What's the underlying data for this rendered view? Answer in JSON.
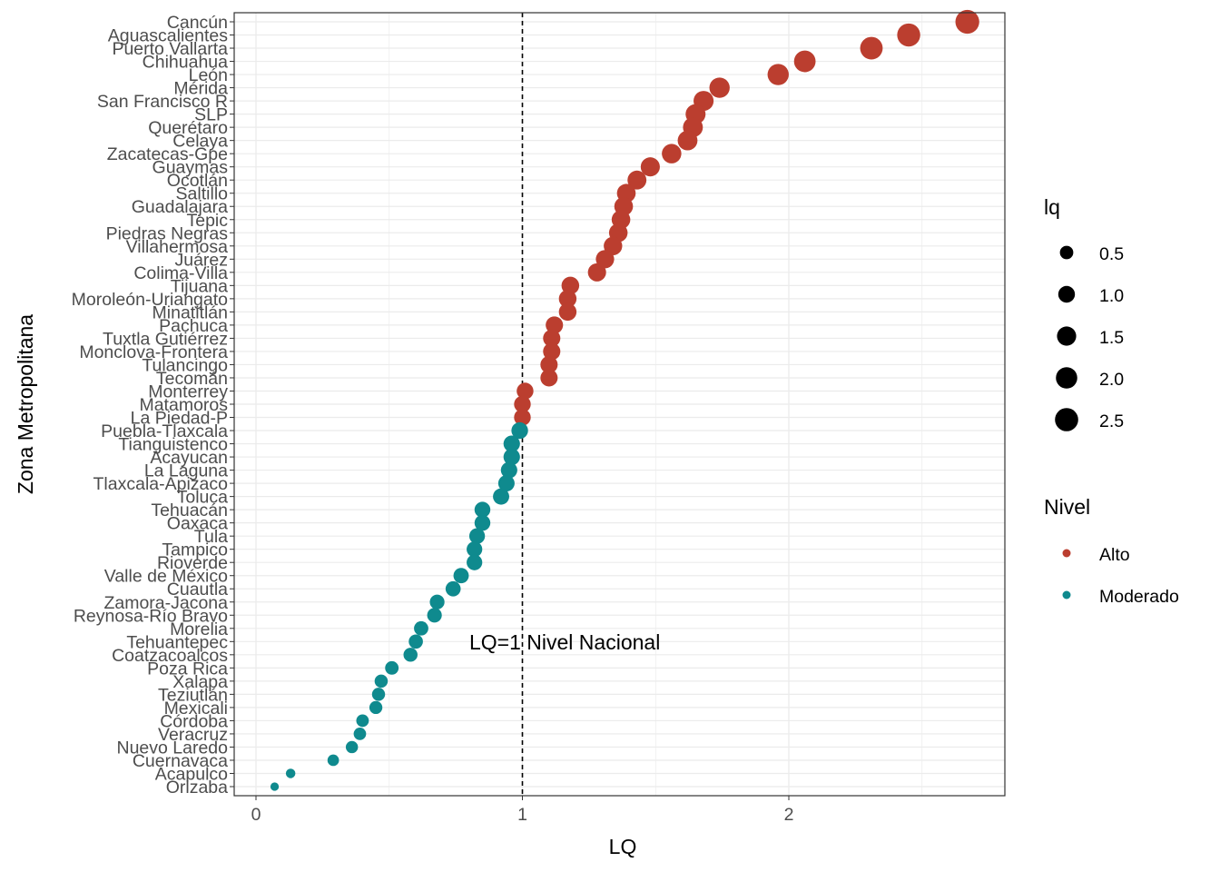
{
  "chart_data": {
    "type": "scatter",
    "xlabel": "LQ",
    "ylabel": "Zona Metropolitana",
    "xlim": [
      -0.04,
      2.8
    ],
    "x_ticks": [
      0,
      1,
      2
    ],
    "grid": true,
    "reference_line": {
      "x": 1,
      "style": "dashed",
      "label": "LQ=1 Nivel Nacional"
    },
    "size_legend": {
      "title": "lq",
      "values": [
        0.5,
        1.0,
        1.5,
        2.0,
        2.5
      ],
      "labels": [
        "0.5",
        "1.0",
        "1.5",
        "2.0",
        "2.5"
      ]
    },
    "color_legend": {
      "title": "Nivel",
      "entries": [
        {
          "label": "Alto",
          "color": "#BB3E2F"
        },
        {
          "label": "Moderado",
          "color": "#0F8A8E"
        }
      ]
    },
    "points": [
      {
        "zona": "Cancún",
        "lq": 2.67,
        "nivel": "Alto"
      },
      {
        "zona": "Aguascalientes",
        "lq": 2.45,
        "nivel": "Alto"
      },
      {
        "zona": "Puerto Vallarta",
        "lq": 2.31,
        "nivel": "Alto"
      },
      {
        "zona": "Chihuahua",
        "lq": 2.06,
        "nivel": "Alto"
      },
      {
        "zona": "León",
        "lq": 1.96,
        "nivel": "Alto"
      },
      {
        "zona": "Mérida",
        "lq": 1.74,
        "nivel": "Alto"
      },
      {
        "zona": "San Francisco R",
        "lq": 1.68,
        "nivel": "Alto"
      },
      {
        "zona": "SLP",
        "lq": 1.65,
        "nivel": "Alto"
      },
      {
        "zona": "Querétaro",
        "lq": 1.64,
        "nivel": "Alto"
      },
      {
        "zona": "Celaya",
        "lq": 1.62,
        "nivel": "Alto"
      },
      {
        "zona": "Zacatecas-Gpe",
        "lq": 1.56,
        "nivel": "Alto"
      },
      {
        "zona": "Guaymas",
        "lq": 1.48,
        "nivel": "Alto"
      },
      {
        "zona": "Ocotlán",
        "lq": 1.43,
        "nivel": "Alto"
      },
      {
        "zona": "Saltillo",
        "lq": 1.39,
        "nivel": "Alto"
      },
      {
        "zona": "Guadalajara",
        "lq": 1.38,
        "nivel": "Alto"
      },
      {
        "zona": "Tepic",
        "lq": 1.37,
        "nivel": "Alto"
      },
      {
        "zona": "Piedras Negras",
        "lq": 1.36,
        "nivel": "Alto"
      },
      {
        "zona": "Villahermosa",
        "lq": 1.34,
        "nivel": "Alto"
      },
      {
        "zona": "Juárez",
        "lq": 1.31,
        "nivel": "Alto"
      },
      {
        "zona": "Colima-Villa",
        "lq": 1.28,
        "nivel": "Alto"
      },
      {
        "zona": "Tijuana",
        "lq": 1.18,
        "nivel": "Alto"
      },
      {
        "zona": "Moroleón-Uriangato",
        "lq": 1.17,
        "nivel": "Alto"
      },
      {
        "zona": "Minatitlán",
        "lq": 1.17,
        "nivel": "Alto"
      },
      {
        "zona": "Pachuca",
        "lq": 1.12,
        "nivel": "Alto"
      },
      {
        "zona": "Tuxtla Gutiérrez",
        "lq": 1.11,
        "nivel": "Alto"
      },
      {
        "zona": "Monclova-Frontera",
        "lq": 1.11,
        "nivel": "Alto"
      },
      {
        "zona": "Tulancingo",
        "lq": 1.1,
        "nivel": "Alto"
      },
      {
        "zona": "Tecomán",
        "lq": 1.1,
        "nivel": "Alto"
      },
      {
        "zona": "Monterrey",
        "lq": 1.01,
        "nivel": "Alto"
      },
      {
        "zona": "Matamoros",
        "lq": 1.0,
        "nivel": "Alto"
      },
      {
        "zona": "La Piedad-P",
        "lq": 1.0,
        "nivel": "Alto"
      },
      {
        "zona": "Puebla-Tlaxcala",
        "lq": 0.99,
        "nivel": "Moderado"
      },
      {
        "zona": "Tianguistenco",
        "lq": 0.96,
        "nivel": "Moderado"
      },
      {
        "zona": "Acayucan",
        "lq": 0.96,
        "nivel": "Moderado"
      },
      {
        "zona": "La Laguna",
        "lq": 0.95,
        "nivel": "Moderado"
      },
      {
        "zona": "Tlaxcala-Apizaco",
        "lq": 0.94,
        "nivel": "Moderado"
      },
      {
        "zona": "Toluca",
        "lq": 0.92,
        "nivel": "Moderado"
      },
      {
        "zona": "Tehuacán",
        "lq": 0.85,
        "nivel": "Moderado"
      },
      {
        "zona": "Oaxaca",
        "lq": 0.85,
        "nivel": "Moderado"
      },
      {
        "zona": "Tula",
        "lq": 0.83,
        "nivel": "Moderado"
      },
      {
        "zona": "Tampico",
        "lq": 0.82,
        "nivel": "Moderado"
      },
      {
        "zona": "Rioverde",
        "lq": 0.82,
        "nivel": "Moderado"
      },
      {
        "zona": "Valle de México",
        "lq": 0.77,
        "nivel": "Moderado"
      },
      {
        "zona": "Cuautla",
        "lq": 0.74,
        "nivel": "Moderado"
      },
      {
        "zona": "Zamora-Jacona",
        "lq": 0.68,
        "nivel": "Moderado"
      },
      {
        "zona": "Reynosa-Río Bravo",
        "lq": 0.67,
        "nivel": "Moderado"
      },
      {
        "zona": "Morelia",
        "lq": 0.62,
        "nivel": "Moderado"
      },
      {
        "zona": "Tehuantepec",
        "lq": 0.6,
        "nivel": "Moderado"
      },
      {
        "zona": "Coatzacoalcos",
        "lq": 0.58,
        "nivel": "Moderado"
      },
      {
        "zona": "Poza Rica",
        "lq": 0.51,
        "nivel": "Moderado"
      },
      {
        "zona": "Xalapa",
        "lq": 0.47,
        "nivel": "Moderado"
      },
      {
        "zona": "Teziutlán",
        "lq": 0.46,
        "nivel": "Moderado"
      },
      {
        "zona": "Mexicali",
        "lq": 0.45,
        "nivel": "Moderado"
      },
      {
        "zona": "Córdoba",
        "lq": 0.4,
        "nivel": "Moderado"
      },
      {
        "zona": "Veracruz",
        "lq": 0.39,
        "nivel": "Moderado"
      },
      {
        "zona": "Nuevo Laredo",
        "lq": 0.36,
        "nivel": "Moderado"
      },
      {
        "zona": "Cuernavaca",
        "lq": 0.29,
        "nivel": "Moderado"
      },
      {
        "zona": "Acapulco",
        "lq": 0.13,
        "nivel": "Moderado"
      },
      {
        "zona": "Orizaba",
        "lq": 0.07,
        "nivel": "Moderado"
      }
    ]
  }
}
